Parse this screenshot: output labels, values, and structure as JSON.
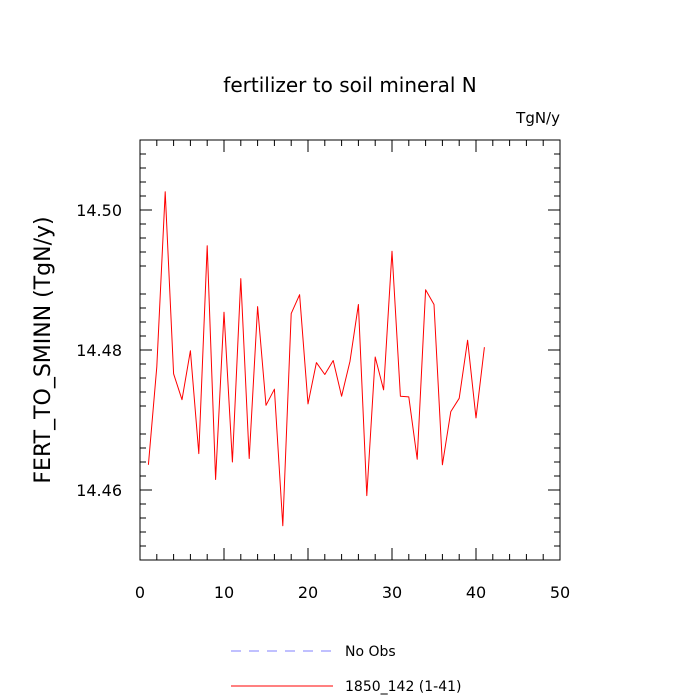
{
  "chart_data": {
    "type": "line",
    "title": "fertilizer to soil mineral N",
    "units_label": "TgN/y",
    "ylabel": "FERT_TO_SMINN  (TgN/y)",
    "xlabel": "",
    "xlim": [
      0,
      50
    ],
    "ylim": [
      14.45,
      14.51
    ],
    "x_ticks": [
      0,
      10,
      20,
      30,
      40,
      50
    ],
    "y_ticks": [
      14.46,
      14.48,
      14.5
    ],
    "y_tick_labels": [
      "14.46",
      "14.48",
      "14.50"
    ],
    "grid": false,
    "legend_position": "bottom",
    "legend": [
      {
        "label": "No Obs",
        "color": "#8080ff",
        "style": "dashed"
      },
      {
        "label": "1850_142 (1-41)",
        "color": "#ff0000",
        "style": "solid"
      }
    ],
    "series": [
      {
        "name": "1850_142 (1-41)",
        "color": "#ff0000",
        "x": [
          1,
          2,
          3,
          4,
          5,
          6,
          7,
          8,
          9,
          10,
          11,
          12,
          13,
          14,
          15,
          16,
          17,
          18,
          19,
          20,
          21,
          22,
          23,
          24,
          25,
          26,
          27,
          28,
          29,
          30,
          31,
          32,
          33,
          34,
          35,
          36,
          37,
          38,
          39,
          40,
          41
        ],
        "values": [
          14.4636,
          14.4776,
          14.5026,
          14.4766,
          14.4729,
          14.4799,
          14.4652,
          14.4949,
          14.4615,
          14.4854,
          14.464,
          14.4902,
          14.4645,
          14.4862,
          14.4721,
          14.4744,
          14.4549,
          14.4852,
          14.4879,
          14.4723,
          14.4782,
          14.4765,
          14.4785,
          14.4734,
          14.4784,
          14.4865,
          14.4592,
          14.479,
          14.4743,
          14.4941,
          14.4734,
          14.4733,
          14.4644,
          14.4886,
          14.4865,
          14.4636,
          14.4712,
          14.4731,
          14.4814,
          14.4703,
          14.4804
        ]
      }
    ]
  }
}
